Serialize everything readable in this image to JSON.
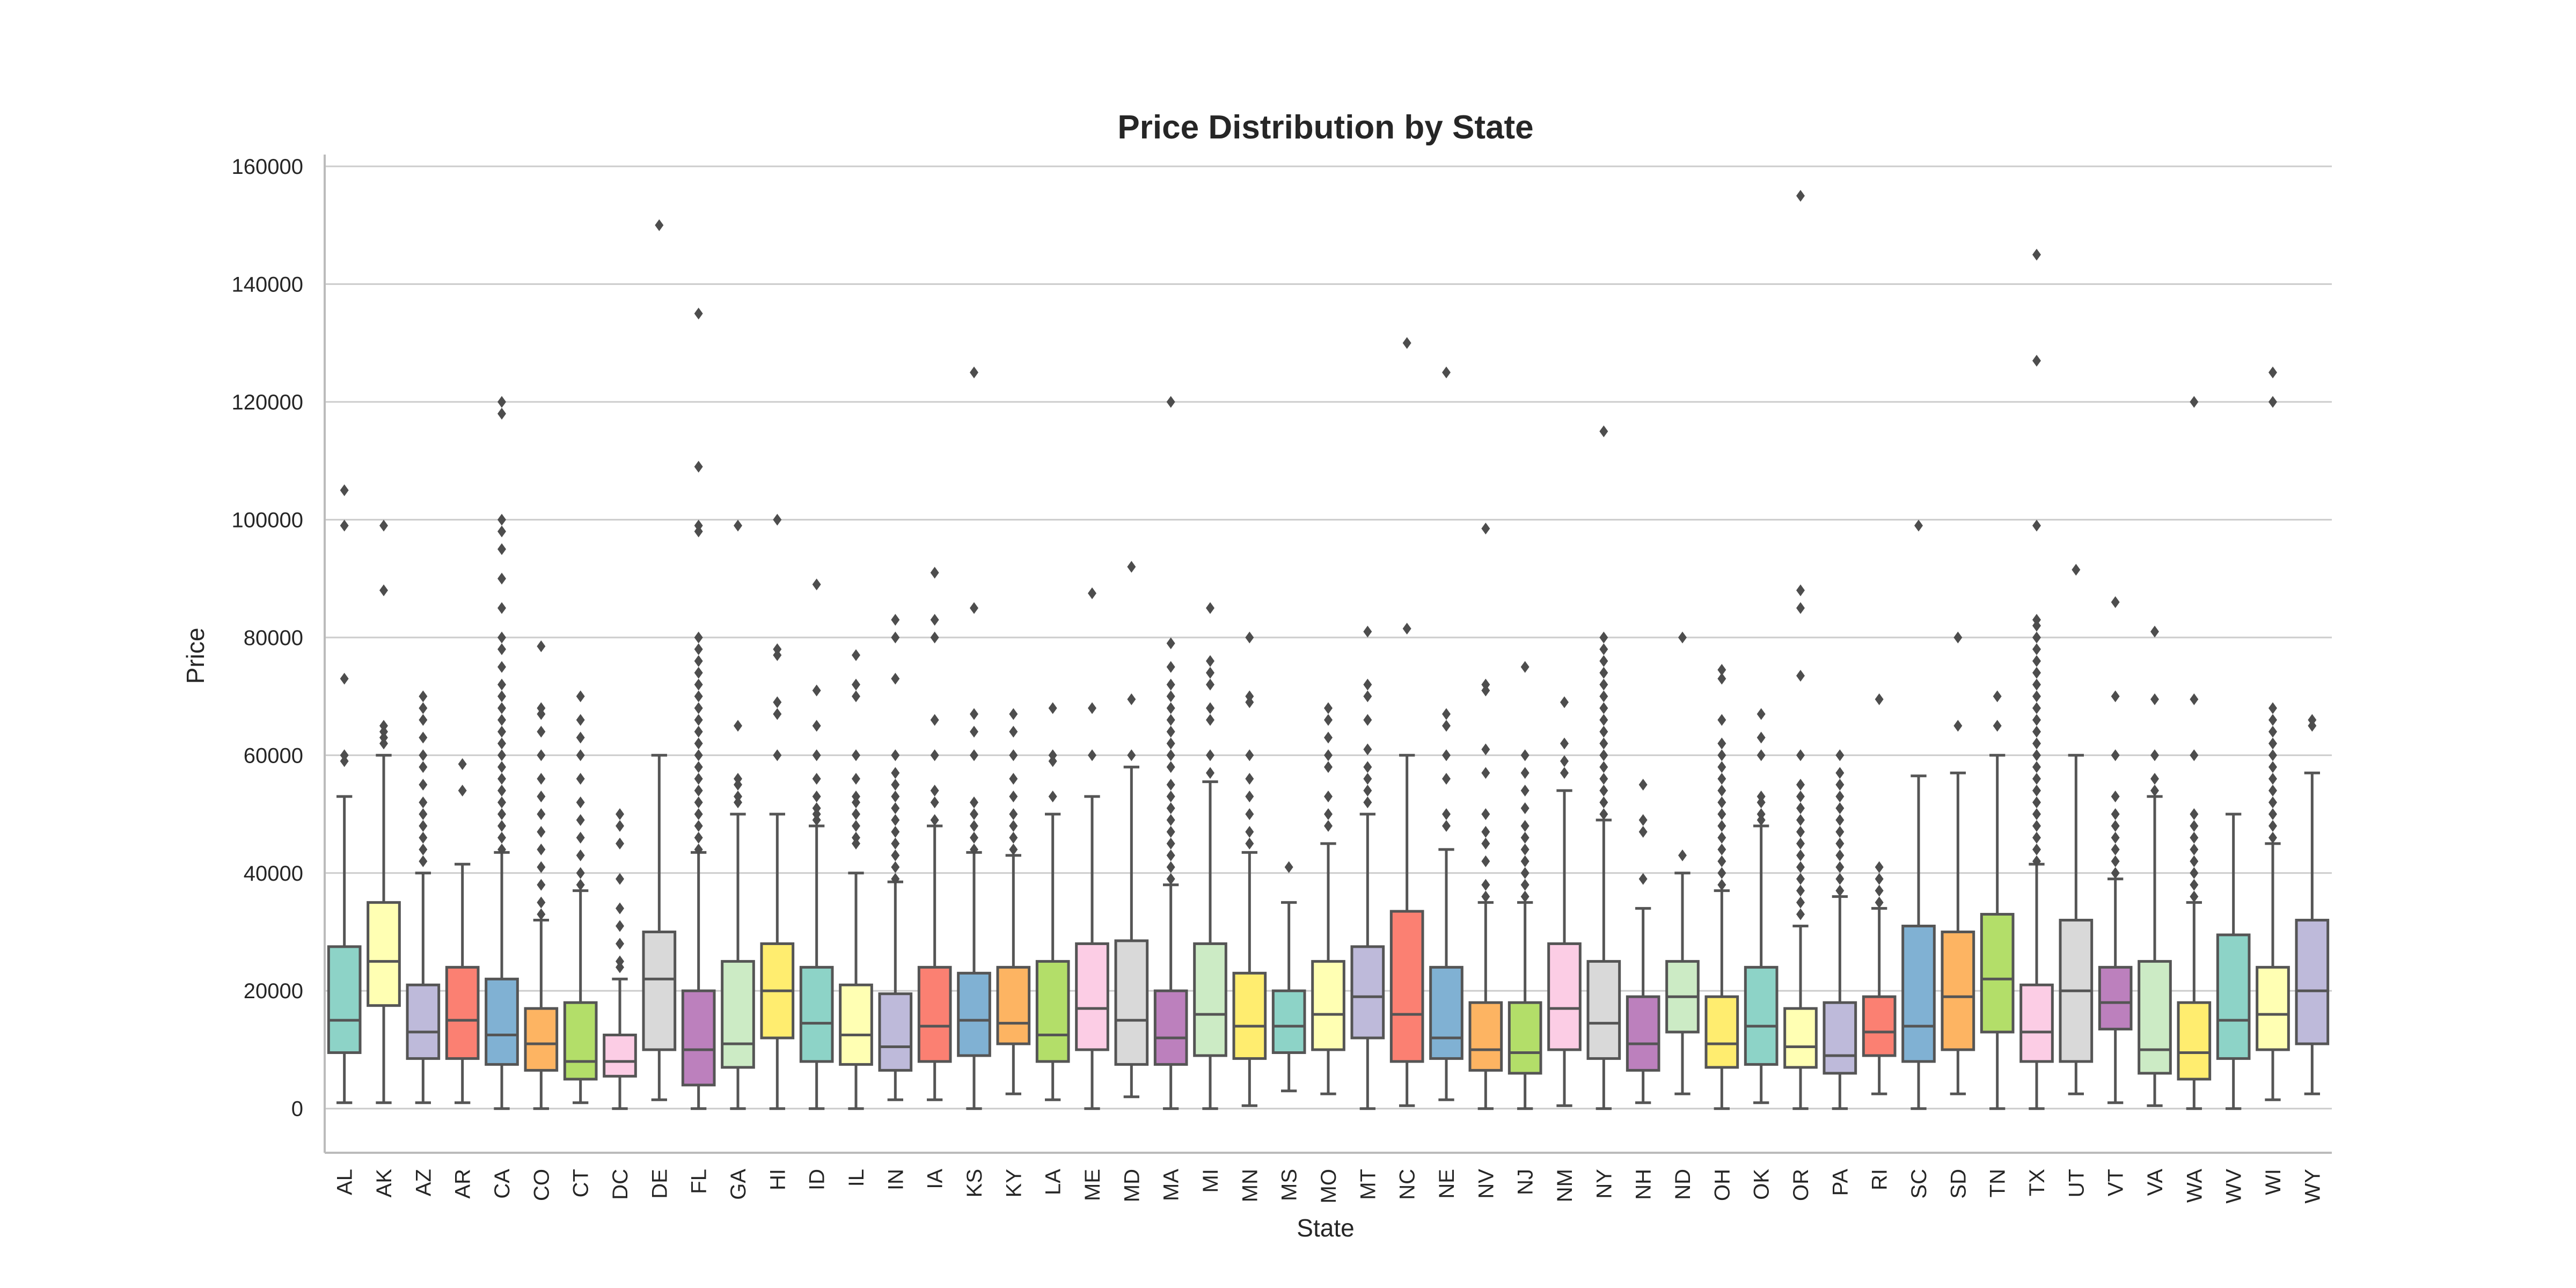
{
  "chart_data": {
    "type": "box",
    "title": "Price Distribution by State",
    "xlabel": "State",
    "ylabel": "Price",
    "ylim": [
      -7500,
      162000
    ],
    "yticks": [
      0,
      20000,
      40000,
      60000,
      80000,
      100000,
      120000,
      140000,
      160000
    ],
    "grid": "horizontal",
    "categories": [
      "AL",
      "AK",
      "AZ",
      "AR",
      "CA",
      "CO",
      "CT",
      "DC",
      "DE",
      "FL",
      "GA",
      "HI",
      "ID",
      "IL",
      "IN",
      "IA",
      "KS",
      "KY",
      "LA",
      "ME",
      "MD",
      "MA",
      "MI",
      "MN",
      "MS",
      "MO",
      "MT",
      "NC",
      "NE",
      "NV",
      "NJ",
      "NM",
      "NY",
      "NH",
      "ND",
      "OH",
      "OK",
      "OR",
      "PA",
      "RI",
      "SC",
      "SD",
      "TN",
      "TX",
      "UT",
      "VT",
      "VA",
      "WA",
      "WV",
      "WI",
      "WY"
    ],
    "colors": [
      "#8dd3c7",
      "#ffffb3",
      "#bebada",
      "#fb8072",
      "#80b1d3",
      "#fdb462",
      "#b3de69",
      "#fccde5",
      "#d9d9d9",
      "#bc80bd",
      "#ccebc5",
      "#ffed6f",
      "#8dd3c7",
      "#ffffb3",
      "#bebada",
      "#fb8072",
      "#80b1d3",
      "#fdb462",
      "#b3de69",
      "#fccde5",
      "#d9d9d9",
      "#bc80bd",
      "#ccebc5",
      "#ffed6f",
      "#8dd3c7",
      "#ffffb3",
      "#bebada",
      "#fb8072",
      "#80b1d3",
      "#fdb462",
      "#b3de69",
      "#fccde5",
      "#d9d9d9",
      "#bc80bd",
      "#ccebc5",
      "#ffed6f",
      "#8dd3c7",
      "#ffffb3",
      "#bebada",
      "#fb8072",
      "#80b1d3",
      "#fdb462",
      "#b3de69",
      "#fccde5",
      "#d9d9d9",
      "#bc80bd",
      "#ccebc5",
      "#ffed6f",
      "#8dd3c7",
      "#ffffb3",
      "#bebada"
    ],
    "boxes": [
      {
        "state": "AL",
        "whisker_low": 1000,
        "q1": 9500,
        "median": 15000,
        "q3": 27500,
        "whisker_high": 53000,
        "outliers": [
          59000,
          60000,
          73000,
          99000,
          105000
        ]
      },
      {
        "state": "AK",
        "whisker_low": 1000,
        "q1": 17500,
        "median": 25000,
        "q3": 35000,
        "whisker_high": 60000,
        "outliers": [
          62000,
          63000,
          64000,
          65000,
          88000,
          99000
        ]
      },
      {
        "state": "AZ",
        "whisker_low": 1000,
        "q1": 8500,
        "median": 13000,
        "q3": 21000,
        "whisker_high": 40000,
        "outliers": [
          42000,
          44000,
          46000,
          48000,
          50000,
          52000,
          55000,
          58000,
          60000,
          63000,
          66000,
          68000,
          70000
        ]
      },
      {
        "state": "AR",
        "whisker_low": 1000,
        "q1": 8500,
        "median": 15000,
        "q3": 24000,
        "whisker_high": 41500,
        "outliers": [
          54000,
          58500
        ]
      },
      {
        "state": "CA",
        "whisker_low": 0,
        "q1": 7500,
        "median": 12500,
        "q3": 22000,
        "whisker_high": 43500,
        "outliers": [
          44000,
          46000,
          48000,
          50000,
          52000,
          54000,
          56000,
          58000,
          60000,
          62000,
          64000,
          66000,
          68000,
          70000,
          72000,
          75000,
          78000,
          80000,
          85000,
          90000,
          95000,
          98000,
          100000,
          118000,
          120000
        ]
      },
      {
        "state": "CO",
        "whisker_low": 0,
        "q1": 6500,
        "median": 11000,
        "q3": 17000,
        "whisker_high": 32000,
        "outliers": [
          33000,
          35000,
          38000,
          41000,
          44000,
          47000,
          50000,
          53000,
          56000,
          60000,
          64000,
          67000,
          68000,
          78500
        ]
      },
      {
        "state": "CT",
        "whisker_low": 1000,
        "q1": 5000,
        "median": 8000,
        "q3": 18000,
        "whisker_high": 37000,
        "outliers": [
          38000,
          40000,
          43000,
          46000,
          49000,
          52000,
          56000,
          60000,
          63000,
          66000,
          70000
        ]
      },
      {
        "state": "DC",
        "whisker_low": 0,
        "q1": 5500,
        "median": 8000,
        "q3": 12500,
        "whisker_high": 22000,
        "outliers": [
          24000,
          25000,
          28000,
          31000,
          34000,
          39000,
          45000,
          48000,
          50000
        ]
      },
      {
        "state": "DE",
        "whisker_low": 1500,
        "q1": 10000,
        "median": 22000,
        "q3": 30000,
        "whisker_high": 60000,
        "outliers": [
          150000
        ]
      },
      {
        "state": "FL",
        "whisker_low": 0,
        "q1": 4000,
        "median": 10000,
        "q3": 20000,
        "whisker_high": 43500,
        "outliers": [
          44000,
          46000,
          48000,
          50000,
          52000,
          54000,
          56000,
          58000,
          60000,
          62000,
          64000,
          66000,
          68000,
          70000,
          72000,
          74000,
          76000,
          78000,
          80000,
          98000,
          99000,
          109000,
          135000
        ]
      },
      {
        "state": "GA",
        "whisker_low": 0,
        "q1": 7000,
        "median": 11000,
        "q3": 25000,
        "whisker_high": 50000,
        "outliers": [
          52000,
          53000,
          55000,
          56000,
          65000,
          99000
        ]
      },
      {
        "state": "HI",
        "whisker_low": 0,
        "q1": 12000,
        "median": 20000,
        "q3": 28000,
        "whisker_high": 50000,
        "outliers": [
          60000,
          67000,
          69000,
          77000,
          78000,
          100000
        ]
      },
      {
        "state": "ID",
        "whisker_low": 0,
        "q1": 8000,
        "median": 14500,
        "q3": 24000,
        "whisker_high": 48000,
        "outliers": [
          49000,
          50000,
          51000,
          53000,
          56000,
          60000,
          65000,
          71000,
          89000
        ]
      },
      {
        "state": "IL",
        "whisker_low": 0,
        "q1": 7500,
        "median": 12500,
        "q3": 21000,
        "whisker_high": 40000,
        "outliers": [
          45000,
          46000,
          48000,
          50000,
          52000,
          53000,
          56000,
          60000,
          70000,
          72000,
          77000
        ]
      },
      {
        "state": "IN",
        "whisker_low": 1500,
        "q1": 6500,
        "median": 10500,
        "q3": 19500,
        "whisker_high": 38500,
        "outliers": [
          39000,
          41000,
          43000,
          45000,
          47000,
          49000,
          51000,
          53000,
          55000,
          57000,
          60000,
          73000,
          80000,
          83000
        ]
      },
      {
        "state": "IA",
        "whisker_low": 1500,
        "q1": 8000,
        "median": 14000,
        "q3": 24000,
        "whisker_high": 48000,
        "outliers": [
          49000,
          52000,
          54000,
          60000,
          66000,
          80000,
          83000,
          91000
        ]
      },
      {
        "state": "KS",
        "whisker_low": 0,
        "q1": 9000,
        "median": 15000,
        "q3": 23000,
        "whisker_high": 43500,
        "outliers": [
          44000,
          46000,
          48000,
          50000,
          52000,
          60000,
          64000,
          67000,
          85000,
          125000
        ]
      },
      {
        "state": "KY",
        "whisker_low": 2500,
        "q1": 11000,
        "median": 14500,
        "q3": 24000,
        "whisker_high": 43000,
        "outliers": [
          44000,
          46000,
          48000,
          50000,
          53000,
          56000,
          60000,
          64000,
          67000
        ]
      },
      {
        "state": "LA",
        "whisker_low": 1500,
        "q1": 8000,
        "median": 12500,
        "q3": 25000,
        "whisker_high": 50000,
        "outliers": [
          53000,
          59000,
          60000,
          68000
        ]
      },
      {
        "state": "ME",
        "whisker_low": 0,
        "q1": 10000,
        "median": 17000,
        "q3": 28000,
        "whisker_high": 53000,
        "outliers": [
          60000,
          68000,
          87500
        ]
      },
      {
        "state": "MD",
        "whisker_low": 2000,
        "q1": 7500,
        "median": 15000,
        "q3": 28500,
        "whisker_high": 58000,
        "outliers": [
          60000,
          69500,
          92000
        ]
      },
      {
        "state": "MA",
        "whisker_low": 0,
        "q1": 7500,
        "median": 12000,
        "q3": 20000,
        "whisker_high": 38000,
        "outliers": [
          39000,
          41000,
          43000,
          45000,
          47000,
          49000,
          51000,
          53000,
          55000,
          58000,
          60000,
          62000,
          64000,
          66000,
          68000,
          70000,
          72000,
          75000,
          79000,
          120000
        ]
      },
      {
        "state": "MI",
        "whisker_low": 0,
        "q1": 9000,
        "median": 16000,
        "q3": 28000,
        "whisker_high": 55500,
        "outliers": [
          57000,
          60000,
          66000,
          68000,
          72000,
          74000,
          76000,
          85000
        ]
      },
      {
        "state": "MN",
        "whisker_low": 500,
        "q1": 8500,
        "median": 14000,
        "q3": 23000,
        "whisker_high": 43500,
        "outliers": [
          45000,
          47000,
          50000,
          53000,
          56000,
          60000,
          69000,
          70000,
          80000
        ]
      },
      {
        "state": "MS",
        "whisker_low": 3000,
        "q1": 9500,
        "median": 14000,
        "q3": 20000,
        "whisker_high": 35000,
        "outliers": [
          41000
        ]
      },
      {
        "state": "MO",
        "whisker_low": 2500,
        "q1": 10000,
        "median": 16000,
        "q3": 25000,
        "whisker_high": 45000,
        "outliers": [
          48000,
          50000,
          53000,
          58000,
          60000,
          63000,
          66000,
          68000
        ]
      },
      {
        "state": "MT",
        "whisker_low": 0,
        "q1": 12000,
        "median": 19000,
        "q3": 27500,
        "whisker_high": 50000,
        "outliers": [
          52000,
          54000,
          56000,
          58000,
          61000,
          66000,
          70000,
          72000,
          81000
        ]
      },
      {
        "state": "NC",
        "whisker_low": 500,
        "q1": 8000,
        "median": 16000,
        "q3": 33500,
        "whisker_high": 60000,
        "outliers": [
          81500,
          130000
        ]
      },
      {
        "state": "NE",
        "whisker_low": 1500,
        "q1": 8500,
        "median": 12000,
        "q3": 24000,
        "whisker_high": 44000,
        "outliers": [
          48000,
          50000,
          56000,
          60000,
          65000,
          67000,
          125000
        ]
      },
      {
        "state": "NV",
        "whisker_low": 0,
        "q1": 6500,
        "median": 10000,
        "q3": 18000,
        "whisker_high": 35000,
        "outliers": [
          36000,
          38000,
          42000,
          45000,
          47000,
          50000,
          57000,
          61000,
          71000,
          72000,
          98500
        ]
      },
      {
        "state": "NJ",
        "whisker_low": 0,
        "q1": 6000,
        "median": 9500,
        "q3": 18000,
        "whisker_high": 35000,
        "outliers": [
          36000,
          38000,
          40000,
          42000,
          44000,
          46000,
          48000,
          51000,
          54000,
          57000,
          60000,
          75000
        ]
      },
      {
        "state": "NM",
        "whisker_low": 500,
        "q1": 10000,
        "median": 17000,
        "q3": 28000,
        "whisker_high": 54000,
        "outliers": [
          57000,
          59000,
          62000,
          69000
        ]
      },
      {
        "state": "NY",
        "whisker_low": 0,
        "q1": 8500,
        "median": 14500,
        "q3": 25000,
        "whisker_high": 49000,
        "outliers": [
          50000,
          52000,
          54000,
          56000,
          58000,
          60000,
          62000,
          64000,
          66000,
          68000,
          70000,
          72000,
          74000,
          76000,
          78000,
          80000,
          115000
        ]
      },
      {
        "state": "NH",
        "whisker_low": 1000,
        "q1": 6500,
        "median": 11000,
        "q3": 19000,
        "whisker_high": 34000,
        "outliers": [
          39000,
          47000,
          49000,
          55000
        ]
      },
      {
        "state": "ND",
        "whisker_low": 2500,
        "q1": 13000,
        "median": 19000,
        "q3": 25000,
        "whisker_high": 40000,
        "outliers": [
          43000,
          80000
        ]
      },
      {
        "state": "OH",
        "whisker_low": 0,
        "q1": 7000,
        "median": 11000,
        "q3": 19000,
        "whisker_high": 37000,
        "outliers": [
          38000,
          40000,
          42000,
          44000,
          46000,
          48000,
          50000,
          52000,
          54000,
          56000,
          58000,
          60000,
          62000,
          66000,
          73000,
          74500
        ]
      },
      {
        "state": "OK",
        "whisker_low": 1000,
        "q1": 7500,
        "median": 14000,
        "q3": 24000,
        "whisker_high": 48000,
        "outliers": [
          49000,
          50000,
          52000,
          53000,
          60000,
          63000,
          67000
        ]
      },
      {
        "state": "OR",
        "whisker_low": 0,
        "q1": 7000,
        "median": 10500,
        "q3": 17000,
        "whisker_high": 31000,
        "outliers": [
          33000,
          35000,
          37000,
          39000,
          41000,
          43000,
          45000,
          47000,
          49000,
          51000,
          53000,
          55000,
          60000,
          73500,
          85000,
          88000,
          155000
        ]
      },
      {
        "state": "PA",
        "whisker_low": 0,
        "q1": 6000,
        "median": 9000,
        "q3": 18000,
        "whisker_high": 36000,
        "outliers": [
          37000,
          39000,
          41000,
          43000,
          45000,
          47000,
          49000,
          51000,
          53000,
          55000,
          57000,
          60000
        ]
      },
      {
        "state": "RI",
        "whisker_low": 2500,
        "q1": 9000,
        "median": 13000,
        "q3": 19000,
        "whisker_high": 34000,
        "outliers": [
          35000,
          37000,
          39000,
          41000,
          69500
        ]
      },
      {
        "state": "SC",
        "whisker_low": 0,
        "q1": 8000,
        "median": 14000,
        "q3": 31000,
        "whisker_high": 56500,
        "outliers": [
          99000
        ]
      },
      {
        "state": "SD",
        "whisker_low": 2500,
        "q1": 10000,
        "median": 19000,
        "q3": 30000,
        "whisker_high": 57000,
        "outliers": [
          65000,
          80000
        ]
      },
      {
        "state": "TN",
        "whisker_low": 0,
        "q1": 13000,
        "median": 22000,
        "q3": 33000,
        "whisker_high": 60000,
        "outliers": [
          65000,
          70000
        ]
      },
      {
        "state": "TX",
        "whisker_low": 0,
        "q1": 8000,
        "median": 13000,
        "q3": 21000,
        "whisker_high": 41500,
        "outliers": [
          42000,
          44000,
          46000,
          48000,
          50000,
          52000,
          54000,
          56000,
          58000,
          60000,
          62000,
          64000,
          66000,
          68000,
          70000,
          72000,
          74000,
          76000,
          78000,
          80000,
          82000,
          83000,
          99000,
          127000,
          145000
        ]
      },
      {
        "state": "UT",
        "whisker_low": 2500,
        "q1": 8000,
        "median": 20000,
        "q3": 32000,
        "whisker_high": 60000,
        "outliers": [
          91500
        ]
      },
      {
        "state": "VT",
        "whisker_low": 1000,
        "q1": 13500,
        "median": 18000,
        "q3": 24000,
        "whisker_high": 39000,
        "outliers": [
          40000,
          42000,
          44000,
          46000,
          48000,
          50000,
          53000,
          60000,
          70000,
          86000
        ]
      },
      {
        "state": "VA",
        "whisker_low": 500,
        "q1": 6000,
        "median": 10000,
        "q3": 25000,
        "whisker_high": 53000,
        "outliers": [
          54000,
          56000,
          60000,
          69500,
          81000
        ]
      },
      {
        "state": "WA",
        "whisker_low": 0,
        "q1": 5000,
        "median": 9500,
        "q3": 18000,
        "whisker_high": 35000,
        "outliers": [
          36000,
          38000,
          40000,
          42000,
          44000,
          46000,
          48000,
          50000,
          60000,
          69500,
          120000
        ]
      },
      {
        "state": "WV",
        "whisker_low": 0,
        "q1": 8500,
        "median": 15000,
        "q3": 29500,
        "whisker_high": 50000,
        "outliers": []
      },
      {
        "state": "WI",
        "whisker_low": 1500,
        "q1": 10000,
        "median": 16000,
        "q3": 24000,
        "whisker_high": 45000,
        "outliers": [
          46000,
          48000,
          50000,
          52000,
          54000,
          56000,
          58000,
          60000,
          62000,
          64000,
          66000,
          68000,
          120000,
          125000
        ]
      },
      {
        "state": "WY",
        "whisker_low": 2500,
        "q1": 11000,
        "median": 20000,
        "q3": 32000,
        "whisker_high": 57000,
        "outliers": [
          65000,
          66000
        ]
      }
    ]
  }
}
